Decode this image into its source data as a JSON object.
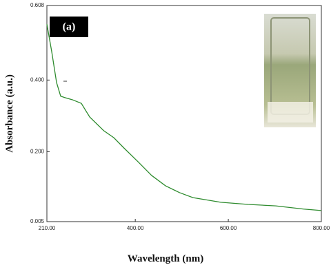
{
  "chart_data": {
    "type": "line",
    "annotation": "(a)",
    "x_label": "Wavelength (nm)",
    "y_label": "Absorbance (a.u.)",
    "x": [
      210,
      220.4,
      230.8,
      239.6,
      249,
      265,
      284,
      302,
      332,
      354,
      376,
      406,
      435,
      465,
      495,
      524,
      584,
      643,
      702,
      762,
      800
    ],
    "values": [
      0.556,
      0.479,
      0.393,
      0.355,
      0.351,
      0.345,
      0.335,
      0.297,
      0.259,
      0.239,
      0.21,
      0.172,
      0.134,
      0.105,
      0.086,
      0.072,
      0.059,
      0.053,
      0.049,
      0.04,
      0.036
    ],
    "color": "#2e8b2e",
    "xlim": [
      210,
      800
    ],
    "ylim": [
      0.005,
      0.608
    ],
    "xticks": [
      {
        "value": 210,
        "label": "210.00"
      },
      {
        "value": 400,
        "label": "400.00"
      },
      {
        "value": 600,
        "label": "600.00"
      },
      {
        "value": 800,
        "label": "800.00"
      }
    ],
    "yticks": [
      0.005,
      {
        "value": 0.2,
        "label": "0.200"
      },
      {
        "value": 0.4,
        "label": "0.400"
      },
      0.608
    ],
    "grid": false
  }
}
